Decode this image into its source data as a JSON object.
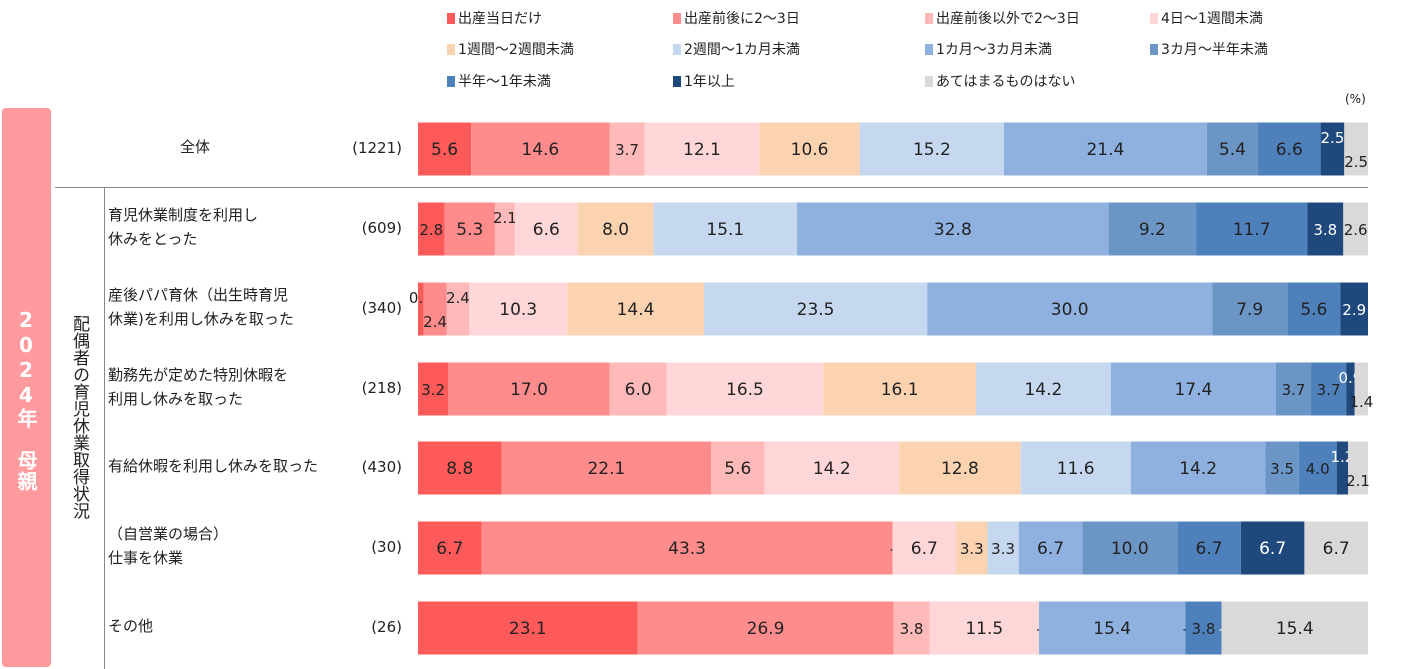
{
  "chart_data": {
    "type": "bar",
    "orientation": "horizontal",
    "stacked": true,
    "unit_label": "(%)",
    "side_label": "2024年　母親",
    "group_label": "配偶者の育児休業取得状況",
    "xlim": [
      0,
      100
    ],
    "series": [
      {
        "name": "出産当日だけ",
        "color": "#FF5A5A"
      },
      {
        "name": "出産前後に2～3日",
        "color": "#FF8C8C"
      },
      {
        "name": "出産前後以外で2～3日",
        "color": "#FFB9B9"
      },
      {
        "name": "4日～1週間未満",
        "color": "#FFD7D9"
      },
      {
        "name": "1週間～2週間未満",
        "color": "#FBD3B1"
      },
      {
        "name": "2週間～1カ月未満",
        "color": "#C6D8EF"
      },
      {
        "name": "1カ月～3カ月未満",
        "color": "#8EB1E0"
      },
      {
        "name": "3カ月～半年未満",
        "color": "#6A95C5"
      },
      {
        "name": "半年～1年未満",
        "color": "#4E80BC"
      },
      {
        "name": "1年以上",
        "color": "#1F497D"
      },
      {
        "name": "あてはまるものはない",
        "color": "#D9D9D9"
      }
    ],
    "rows": [
      {
        "label": "全体",
        "n": "(1221)",
        "values": [
          5.6,
          14.6,
          3.7,
          12.1,
          10.6,
          15.2,
          21.4,
          5.4,
          6.6,
          2.5,
          2.5
        ],
        "labels": [
          "5.6",
          "14.6",
          "3.7",
          "12.1",
          "10.6",
          "15.2",
          "21.4",
          "5.4",
          "6.6",
          "2.5",
          "2.5"
        ]
      },
      {
        "label": "育児休業制度を利用し\n休みをとった",
        "n": "(609)",
        "values": [
          2.8,
          5.3,
          2.1,
          6.6,
          8.0,
          15.1,
          32.8,
          9.2,
          11.7,
          3.8,
          2.6
        ],
        "labels": [
          "2.8",
          "5.3",
          "2.1",
          "6.6",
          "8.0",
          "15.1",
          "32.8",
          "9.2",
          "11.7",
          "3.8",
          "2.6"
        ]
      },
      {
        "label": "産後パパ育休（出生時育児\n休業)を利用し休みを取った",
        "n": "(340)",
        "values": [
          0.6,
          2.4,
          2.4,
          10.3,
          14.4,
          23.5,
          30.0,
          7.9,
          5.6,
          2.9,
          0
        ],
        "labels": [
          "0.6",
          "2.4",
          "2.4",
          "10.3",
          "14.4",
          "23.5",
          "30.0",
          "7.9",
          "5.6",
          "2.9",
          ""
        ]
      },
      {
        "label": "勤務先が定めた特別休暇を\n利用し休みを取った",
        "n": "(218)",
        "values": [
          3.2,
          17.0,
          6.0,
          16.5,
          16.1,
          14.2,
          17.4,
          3.7,
          3.7,
          0.9,
          1.4
        ],
        "labels": [
          "3.2",
          "17.0",
          "6.0",
          "16.5",
          "16.1",
          "14.2",
          "17.4",
          "3.7",
          "3.7",
          "0.9",
          "1.4"
        ]
      },
      {
        "label": "有給休暇を利用し休みを取った",
        "n": "(430)",
        "values": [
          8.8,
          22.1,
          5.6,
          14.2,
          12.8,
          11.6,
          14.2,
          3.5,
          4.0,
          1.2,
          2.1
        ],
        "labels": [
          "8.8",
          "22.1",
          "5.6",
          "14.2",
          "12.8",
          "11.6",
          "14.2",
          "3.5",
          "4.0",
          "1.2",
          "2.1"
        ]
      },
      {
        "label": "（自営業の場合）\n仕事を休業",
        "n": "(30)",
        "values": [
          6.7,
          43.3,
          0,
          6.7,
          3.3,
          3.3,
          6.7,
          10.0,
          6.7,
          6.7,
          6.7
        ],
        "labels": [
          "6.7",
          "43.3",
          "-",
          "6.7",
          "3.3",
          "3.3",
          "6.7",
          "10.0",
          "6.7",
          "6.7",
          "6.7"
        ]
      },
      {
        "label": "その他",
        "n": "(26)",
        "values": [
          23.1,
          26.9,
          3.8,
          11.5,
          0,
          0,
          15.4,
          0,
          3.8,
          0,
          15.4
        ],
        "labels": [
          "23.1",
          "26.9",
          "3.8",
          "11.5",
          "-",
          "",
          "15.4",
          "-",
          "3.8",
          "-",
          "15.4"
        ]
      }
    ]
  }
}
